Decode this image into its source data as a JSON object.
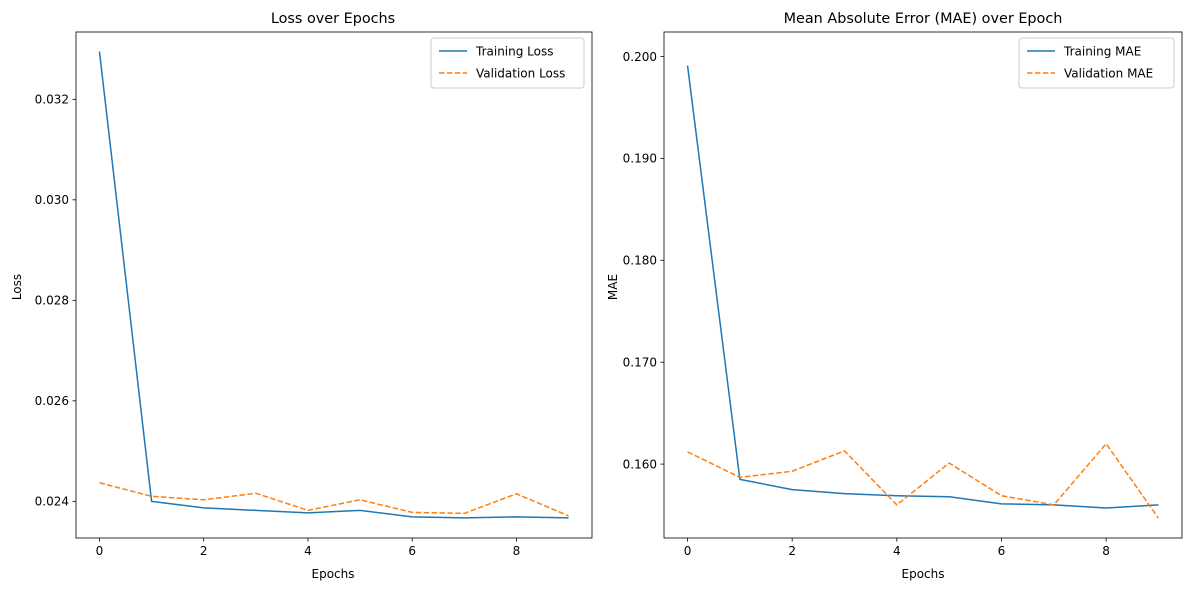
{
  "chart_data": [
    {
      "type": "line",
      "title": "Loss over Epochs",
      "xlabel": "Epochs",
      "ylabel": "Loss",
      "xlim": [
        -0.45,
        9.45
      ],
      "ylim": [
        0.02327,
        0.03334
      ],
      "xticks": [
        0,
        2,
        4,
        6,
        8
      ],
      "xtick_labels": [
        "0",
        "2",
        "4",
        "6",
        "8"
      ],
      "yticks": [
        0.024,
        0.026,
        0.028,
        0.03,
        0.032
      ],
      "ytick_labels": [
        "0.024",
        "0.026",
        "0.028",
        "0.030",
        "0.032"
      ],
      "grid": false,
      "legend": "top-right",
      "x": [
        0,
        1,
        2,
        3,
        4,
        5,
        6,
        7,
        8,
        9
      ],
      "series": [
        {
          "name": "Training Loss",
          "color": "#1f77b4",
          "dash": "solid",
          "values": [
            0.03295,
            0.024,
            0.02387,
            0.02382,
            0.02377,
            0.02382,
            0.02369,
            0.02367,
            0.02369,
            0.02367
          ]
        },
        {
          "name": "Validation Loss",
          "color": "#ff7f0e",
          "dash": "dashed",
          "values": [
            0.02437,
            0.0241,
            0.02403,
            0.02416,
            0.02382,
            0.02403,
            0.02378,
            0.02376,
            0.02415,
            0.02371
          ]
        }
      ]
    },
    {
      "type": "line",
      "title": "Mean Absolute Error (MAE) over Epoch",
      "xlabel": "Epochs",
      "ylabel": "MAE",
      "xlim": [
        -0.45,
        9.45
      ],
      "ylim": [
        0.15275,
        0.2024
      ],
      "xticks": [
        0,
        2,
        4,
        6,
        8
      ],
      "xtick_labels": [
        "0",
        "2",
        "4",
        "6",
        "8"
      ],
      "yticks": [
        0.16,
        0.17,
        0.18,
        0.19,
        0.2
      ],
      "ytick_labels": [
        "0.160",
        "0.170",
        "0.180",
        "0.190",
        "0.200"
      ],
      "grid": false,
      "legend": "top-right",
      "x": [
        0,
        1,
        2,
        3,
        4,
        5,
        6,
        7,
        8,
        9
      ],
      "series": [
        {
          "name": "Training MAE",
          "color": "#1f77b4",
          "dash": "solid",
          "values": [
            0.1991,
            0.1585,
            0.1575,
            0.1571,
            0.1569,
            0.1568,
            0.1561,
            0.156,
            0.1557,
            0.156
          ]
        },
        {
          "name": "Validation MAE",
          "color": "#ff7f0e",
          "dash": "dashed",
          "values": [
            0.1612,
            0.1587,
            0.1593,
            0.1613,
            0.156,
            0.1601,
            0.1569,
            0.156,
            0.162,
            0.1547
          ]
        }
      ]
    }
  ]
}
